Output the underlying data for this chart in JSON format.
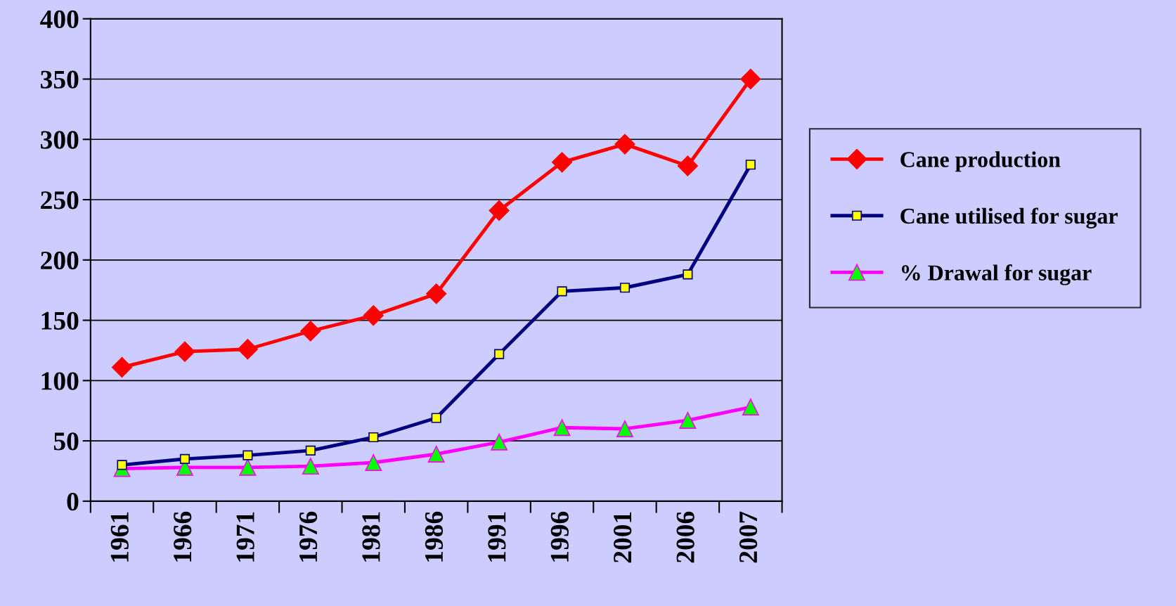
{
  "chart_data": {
    "type": "line",
    "categories": [
      "1961",
      "1966",
      "1971",
      "1976",
      "1981",
      "1986",
      "1991",
      "1996",
      "2001",
      "2006",
      "2007"
    ],
    "series": [
      {
        "name": "Cane production",
        "color": "#ff0000",
        "marker": "diamond",
        "values": [
          111,
          124,
          126,
          141,
          154,
          172,
          241,
          281,
          296,
          278,
          350
        ]
      },
      {
        "name": "Cane utilised for sugar",
        "color": "#000080",
        "marker": "square",
        "values": [
          30,
          35,
          38,
          42,
          53,
          69,
          122,
          174,
          177,
          188,
          279
        ]
      },
      {
        "name": "% Drawal for sugar",
        "color": "#ff00ff",
        "marker": "triangle",
        "values": [
          27,
          28,
          28,
          29,
          32,
          39,
          49,
          61,
          60,
          67,
          78
        ]
      }
    ],
    "ylim": [
      0,
      400
    ],
    "yticks": [
      0,
      50,
      100,
      150,
      200,
      250,
      300,
      350,
      400
    ],
    "grid": "y",
    "legend": "right"
  }
}
